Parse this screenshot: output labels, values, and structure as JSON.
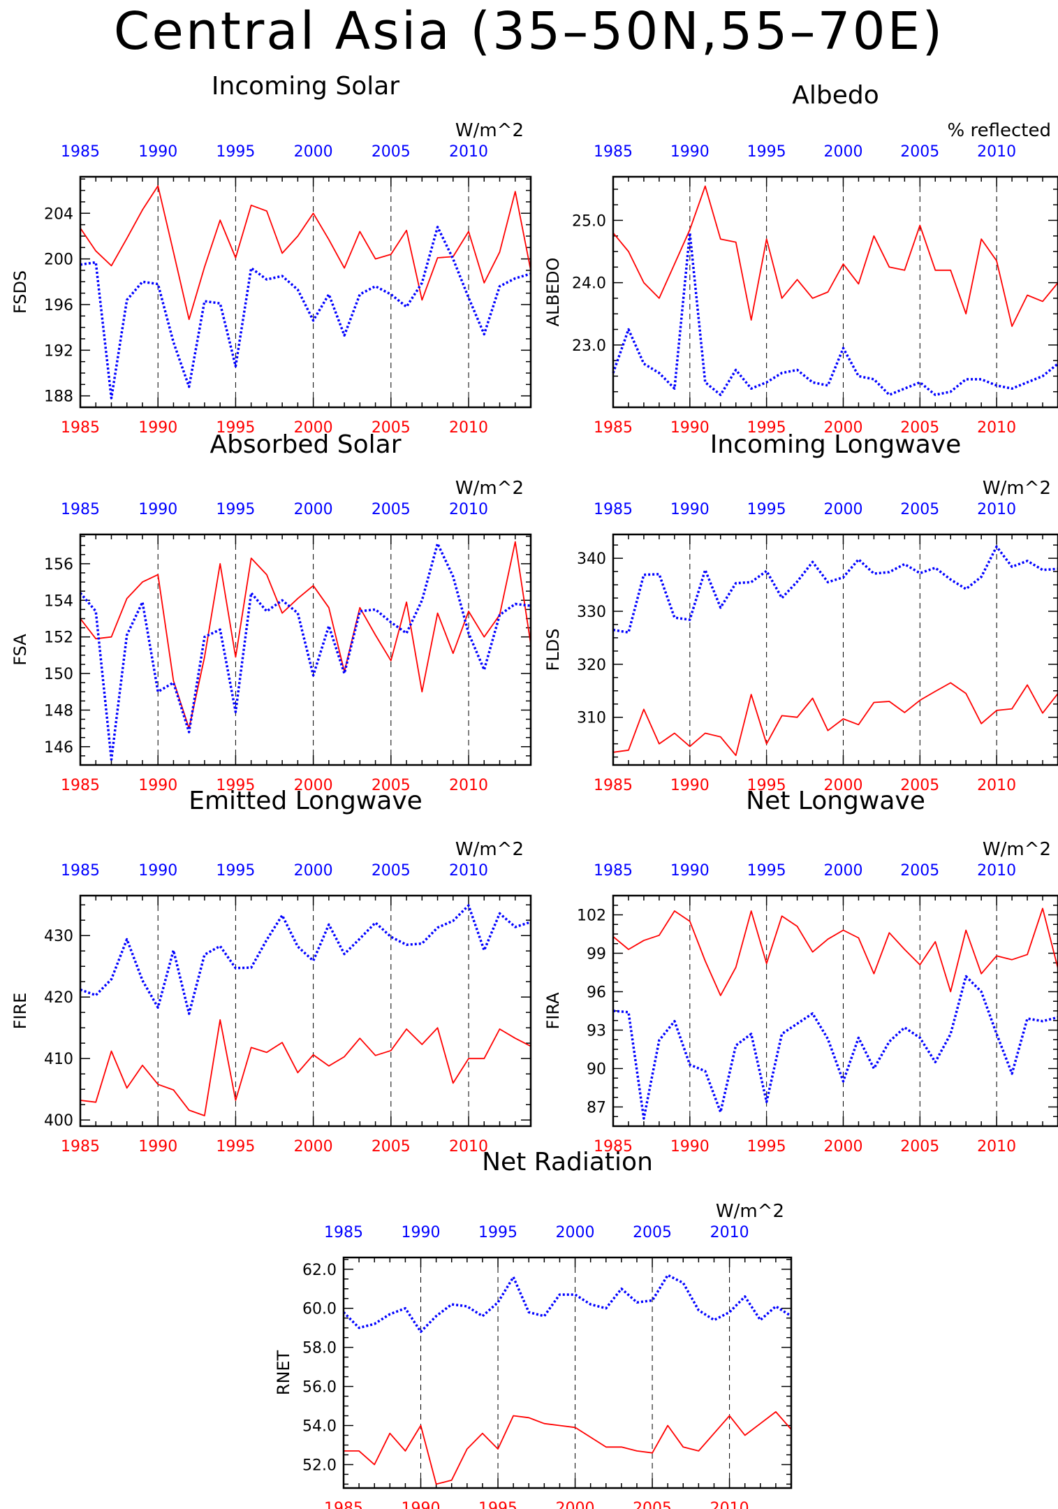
{
  "title": "Central Asia (35–50N,55–70E)",
  "colors": {
    "series_a": "#ff0000",
    "series_b": "#0000ff",
    "axis": "#000000"
  },
  "chart_data": [
    {
      "type": "line",
      "title": "Incoming Solar",
      "ylabel": "FSDS",
      "units": "W/m^2",
      "xlim": [
        1985,
        2014
      ],
      "ylim": [
        187,
        207.2
      ],
      "xticks": [
        1985,
        1990,
        1995,
        2000,
        2005,
        2010
      ],
      "yticks": [
        188,
        192,
        196,
        200,
        204
      ],
      "ytick_labels": [
        "188",
        "192",
        "196",
        "200",
        "204"
      ],
      "x": [
        1985,
        1986,
        1987,
        1988,
        1989,
        1990,
        1991,
        1992,
        1993,
        1994,
        1995,
        1996,
        1997,
        1998,
        1999,
        2000,
        2001,
        2002,
        2003,
        2004,
        2005,
        2006,
        2007,
        2008,
        2009,
        2010,
        2011,
        2012,
        2013,
        2014
      ],
      "series": [
        {
          "color": "#ff0000",
          "style": "solid",
          "values": [
            202.7,
            200.7,
            199.4,
            201.8,
            204.3,
            206.4,
            200.6,
            194.7,
            199.3,
            203.4,
            200.1,
            204.7,
            204.2,
            200.5,
            202.0,
            204.0,
            201.7,
            199.2,
            202.4,
            200.0,
            200.4,
            202.5,
            196.4,
            200.1,
            200.2,
            202.4,
            197.9,
            200.6,
            205.9,
            199.0
          ]
        },
        {
          "color": "#0000ff",
          "style": "dotted",
          "values": [
            199.5,
            199.7,
            187.8,
            196.4,
            198.0,
            197.8,
            192.7,
            188.8,
            196.3,
            196.1,
            190.6,
            199.2,
            198.2,
            198.5,
            197.3,
            194.6,
            196.9,
            193.3,
            196.9,
            197.6,
            196.9,
            195.8,
            197.9,
            202.8,
            200.0,
            196.6,
            193.4,
            197.6,
            198.3,
            198.7
          ]
        }
      ]
    },
    {
      "type": "line",
      "title": "Albedo",
      "ylabel": "ALBEDO",
      "units": "% reflected",
      "xlim": [
        1985,
        2014
      ],
      "ylim": [
        22.0,
        25.7
      ],
      "xticks": [
        1985,
        1990,
        1995,
        2000,
        2005,
        2010
      ],
      "yticks": [
        23.0,
        24.0,
        25.0
      ],
      "ytick_labels": [
        "23.0",
        "24.0",
        "25.0"
      ],
      "x": [
        1985,
        1986,
        1987,
        1988,
        1989,
        1990,
        1991,
        1992,
        1993,
        1994,
        1995,
        1996,
        1997,
        1998,
        1999,
        2000,
        2001,
        2002,
        2003,
        2004,
        2005,
        2006,
        2007,
        2008,
        2009,
        2010,
        2011,
        2012,
        2013,
        2014
      ],
      "series": [
        {
          "color": "#ff0000",
          "style": "solid",
          "values": [
            24.8,
            24.5,
            24.0,
            23.75,
            24.3,
            24.85,
            25.55,
            24.7,
            24.65,
            23.4,
            24.7,
            23.75,
            24.05,
            23.75,
            23.85,
            24.3,
            23.98,
            24.75,
            24.25,
            24.2,
            24.92,
            24.2,
            24.2,
            23.5,
            24.7,
            24.35,
            23.3,
            23.8,
            23.7,
            24.0
          ]
        },
        {
          "color": "#0000ff",
          "style": "dotted",
          "values": [
            22.55,
            23.25,
            22.7,
            22.55,
            22.3,
            24.8,
            22.4,
            22.2,
            22.6,
            22.3,
            22.4,
            22.55,
            22.6,
            22.4,
            22.35,
            22.95,
            22.5,
            22.45,
            22.2,
            22.3,
            22.4,
            22.2,
            22.25,
            22.45,
            22.45,
            22.35,
            22.3,
            22.4,
            22.5,
            22.7
          ]
        }
      ]
    },
    {
      "type": "line",
      "title": "Absorbed Solar",
      "ylabel": "FSA",
      "units": "W/m^2",
      "xlim": [
        1985,
        2014
      ],
      "ylim": [
        145,
        157.6
      ],
      "xticks": [
        1985,
        1990,
        1995,
        2000,
        2005,
        2010
      ],
      "yticks": [
        146,
        148,
        150,
        152,
        154,
        156
      ],
      "ytick_labels": [
        "146",
        "148",
        "150",
        "152",
        "154",
        "156"
      ],
      "x": [
        1985,
        1986,
        1987,
        1988,
        1989,
        1990,
        1991,
        1992,
        1993,
        1994,
        1995,
        1996,
        1997,
        1998,
        1999,
        2000,
        2001,
        2002,
        2003,
        2004,
        2005,
        2006,
        2007,
        2008,
        2009,
        2010,
        2011,
        2012,
        2013,
        2014
      ],
      "series": [
        {
          "color": "#ff0000",
          "style": "solid",
          "values": [
            153.0,
            151.9,
            152.0,
            154.1,
            155.0,
            155.4,
            149.6,
            147.0,
            150.9,
            156.0,
            150.9,
            156.3,
            155.4,
            153.3,
            154.1,
            154.8,
            153.6,
            150.1,
            153.6,
            152.1,
            150.7,
            153.9,
            149.0,
            153.3,
            151.1,
            153.4,
            152.0,
            153.2,
            157.2,
            151.6
          ]
        },
        {
          "color": "#0000ff",
          "style": "dotted",
          "values": [
            154.4,
            153.4,
            145.3,
            152.1,
            153.9,
            149.0,
            149.5,
            146.8,
            152.0,
            152.4,
            147.9,
            154.4,
            153.4,
            154.0,
            153.3,
            149.9,
            152.6,
            150.0,
            153.4,
            153.5,
            152.8,
            152.2,
            154.0,
            157.1,
            155.3,
            152.2,
            150.2,
            153.2,
            153.8,
            153.7
          ]
        }
      ]
    },
    {
      "type": "line",
      "title": "Incoming Longwave",
      "ylabel": "FLDS",
      "units": "W/m^2",
      "xlim": [
        1985,
        2014
      ],
      "ylim": [
        301,
        344.5
      ],
      "xticks": [
        1985,
        1990,
        1995,
        2000,
        2005,
        2010
      ],
      "yticks": [
        310,
        320,
        330,
        340
      ],
      "ytick_labels": [
        "310",
        "320",
        "330",
        "340"
      ],
      "x": [
        1985,
        1986,
        1987,
        1988,
        1989,
        1990,
        1991,
        1992,
        1993,
        1994,
        1995,
        1996,
        1997,
        1998,
        1999,
        2000,
        2001,
        2002,
        2003,
        2004,
        2005,
        2006,
        2007,
        2008,
        2009,
        2010,
        2011,
        2012,
        2013,
        2014
      ],
      "series": [
        {
          "color": "#ff0000",
          "style": "solid",
          "values": [
            303.4,
            303.8,
            311.5,
            305.0,
            307.0,
            304.5,
            307.0,
            306.3,
            302.8,
            314.3,
            305.0,
            310.3,
            310.0,
            313.6,
            307.5,
            309.7,
            308.6,
            312.8,
            313.0,
            310.9,
            313.2,
            314.9,
            316.5,
            314.5,
            308.8,
            311.3,
            311.6,
            316.1,
            310.8,
            314.5
          ]
        },
        {
          "color": "#0000ff",
          "style": "dotted",
          "values": [
            326.5,
            326.0,
            336.9,
            337.0,
            328.8,
            328.4,
            337.8,
            330.7,
            335.3,
            335.5,
            337.6,
            332.5,
            335.6,
            339.3,
            335.5,
            336.4,
            339.8,
            337.1,
            337.4,
            338.9,
            337.2,
            338.2,
            336.0,
            334.2,
            336.5,
            342.2,
            338.4,
            339.5,
            337.8,
            338.0
          ]
        }
      ]
    },
    {
      "type": "line",
      "title": "Emitted Longwave",
      "ylabel": "FIRE",
      "units": "W/m^2",
      "xlim": [
        1985,
        2014
      ],
      "ylim": [
        399,
        436.5
      ],
      "xticks": [
        1985,
        1990,
        1995,
        2000,
        2005,
        2010
      ],
      "yticks": [
        400,
        410,
        420,
        430
      ],
      "ytick_labels": [
        "400",
        "410",
        "420",
        "430"
      ],
      "x": [
        1985,
        1986,
        1987,
        1988,
        1989,
        1990,
        1991,
        1992,
        1993,
        1994,
        1995,
        1996,
        1997,
        1998,
        1999,
        2000,
        2001,
        2002,
        2003,
        2004,
        2005,
        2006,
        2007,
        2008,
        2009,
        2010,
        2011,
        2012,
        2013,
        2014
      ],
      "series": [
        {
          "color": "#ff0000",
          "style": "solid",
          "values": [
            403.2,
            402.9,
            411.2,
            405.2,
            408.9,
            405.8,
            404.9,
            401.6,
            400.7,
            416.3,
            403.2,
            411.8,
            411.0,
            412.6,
            407.7,
            410.6,
            408.8,
            410.3,
            413.3,
            410.5,
            411.3,
            414.8,
            412.3,
            415.0,
            406.0,
            410.0,
            410.0,
            414.8,
            413.3,
            412.0
          ]
        },
        {
          "color": "#0000ff",
          "style": "dotted",
          "values": [
            421.2,
            420.3,
            422.9,
            429.4,
            422.7,
            418.3,
            427.6,
            417.3,
            426.9,
            428.3,
            424.7,
            424.8,
            429.3,
            433.3,
            428.2,
            425.9,
            431.8,
            427.0,
            429.5,
            432.1,
            429.8,
            428.5,
            428.7,
            431.3,
            432.4,
            434.9,
            427.6,
            433.6,
            431.4,
            432.2
          ]
        }
      ]
    },
    {
      "type": "line",
      "title": "Net Longwave",
      "ylabel": "FIRA",
      "units": "W/m^2",
      "xlim": [
        1985,
        2014
      ],
      "ylim": [
        85.5,
        103.5
      ],
      "xticks": [
        1985,
        1990,
        1995,
        2000,
        2005,
        2010
      ],
      "yticks": [
        87,
        90,
        93,
        96,
        99,
        102
      ],
      "ytick_labels": [
        "87",
        "90",
        "93",
        "96",
        "99",
        "102"
      ],
      "x": [
        1985,
        1986,
        1987,
        1988,
        1989,
        1990,
        1991,
        1992,
        1993,
        1994,
        1995,
        1996,
        1997,
        1998,
        1999,
        2000,
        2001,
        2002,
        2003,
        2004,
        2005,
        2006,
        2007,
        2008,
        2009,
        2010,
        2011,
        2012,
        2013,
        2014
      ],
      "series": [
        {
          "color": "#ff0000",
          "style": "solid",
          "values": [
            100.3,
            99.3,
            100.0,
            100.4,
            102.3,
            101.5,
            98.4,
            95.7,
            97.9,
            102.3,
            98.2,
            101.9,
            101.1,
            99.1,
            100.1,
            100.8,
            100.2,
            97.4,
            100.6,
            99.3,
            98.1,
            99.9,
            96.0,
            100.8,
            97.4,
            98.8,
            98.5,
            98.9,
            102.5,
            97.8
          ]
        },
        {
          "color": "#0000ff",
          "style": "dotted",
          "values": [
            94.5,
            94.4,
            86.1,
            92.2,
            93.7,
            90.3,
            89.8,
            86.6,
            91.8,
            92.7,
            87.4,
            92.7,
            93.5,
            94.3,
            92.3,
            89.0,
            92.4,
            90.0,
            92.1,
            93.2,
            92.4,
            90.5,
            92.7,
            97.2,
            96.0,
            92.7,
            89.6,
            93.9,
            93.7,
            94.0
          ]
        }
      ]
    },
    {
      "type": "line",
      "title": "Net Radiation",
      "ylabel": "RNET",
      "units": "W/m^2",
      "xlim": [
        1985,
        2014
      ],
      "ylim": [
        50.8,
        62.6
      ],
      "xticks": [
        1985,
        1990,
        1995,
        2000,
        2005,
        2010
      ],
      "yticks": [
        52.0,
        54.0,
        56.0,
        58.0,
        60.0,
        62.0
      ],
      "ytick_labels": [
        "52.0",
        "54.0",
        "56.0",
        "58.0",
        "60.0",
        "62.0"
      ],
      "x": [
        1985,
        1986,
        1987,
        1988,
        1989,
        1990,
        1991,
        1992,
        1993,
        1994,
        1995,
        1996,
        1997,
        1998,
        1999,
        2000,
        2001,
        2002,
        2003,
        2004,
        2005,
        2006,
        2007,
        2008,
        2009,
        2010,
        2011,
        2012,
        2013,
        2014
      ],
      "series": [
        {
          "color": "#ff0000",
          "style": "solid",
          "values": [
            52.7,
            52.7,
            52.0,
            53.6,
            52.7,
            54.0,
            51.0,
            51.2,
            52.8,
            53.6,
            52.8,
            54.5,
            54.4,
            54.1,
            54.0,
            53.9,
            53.4,
            52.9,
            52.9,
            52.7,
            52.6,
            54.0,
            52.9,
            52.7,
            53.6,
            54.5,
            53.5,
            54.1,
            54.7,
            53.8
          ]
        },
        {
          "color": "#0000ff",
          "style": "dotted",
          "values": [
            59.8,
            59.0,
            59.2,
            59.7,
            60.0,
            58.8,
            59.6,
            60.2,
            60.1,
            59.6,
            60.3,
            61.6,
            59.8,
            59.6,
            60.7,
            60.7,
            60.2,
            60.0,
            61.0,
            60.3,
            60.4,
            61.7,
            61.3,
            59.9,
            59.4,
            59.8,
            60.6,
            59.4,
            60.1,
            59.6
          ]
        }
      ]
    }
  ]
}
